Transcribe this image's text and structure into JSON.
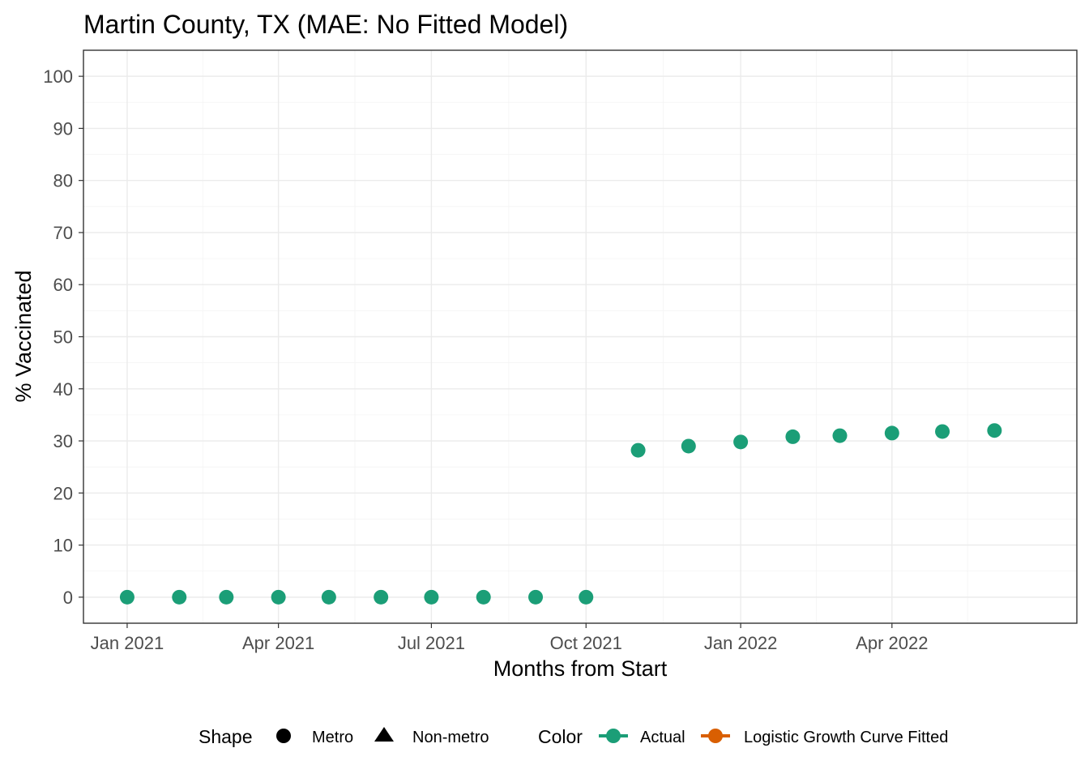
{
  "chart_data": {
    "type": "scatter",
    "title": "Martin County, TX (MAE: No Fitted Model)",
    "xlabel": "Months from Start",
    "ylabel": "% Vaccinated",
    "x_tick_labels": [
      "Jan 2021",
      "Apr 2021",
      "Jul 2021",
      "Oct 2021",
      "Jan 2022",
      "Apr 2022"
    ],
    "x_ticks": [
      "2021-01-01",
      "2021-04-01",
      "2021-07-01",
      "2021-10-01",
      "2022-01-01",
      "2022-04-01"
    ],
    "xlim": [
      "2020-12-06",
      "2022-07-20"
    ],
    "ylim": [
      -5,
      105
    ],
    "y_ticks": [
      0,
      10,
      20,
      30,
      40,
      50,
      60,
      70,
      80,
      90,
      100
    ],
    "grid": true,
    "legend_position": "bottom",
    "series": [
      {
        "name": "Actual",
        "color": "#1b9e77",
        "shape": "Metro",
        "points": [
          {
            "x": "2021-01-01",
            "y": 0
          },
          {
            "x": "2021-02-01",
            "y": 0
          },
          {
            "x": "2021-03-01",
            "y": 0
          },
          {
            "x": "2021-04-01",
            "y": 0
          },
          {
            "x": "2021-05-01",
            "y": 0
          },
          {
            "x": "2021-06-01",
            "y": 0
          },
          {
            "x": "2021-07-01",
            "y": 0
          },
          {
            "x": "2021-08-01",
            "y": 0
          },
          {
            "x": "2021-09-01",
            "y": 0
          },
          {
            "x": "2021-10-01",
            "y": 0
          },
          {
            "x": "2021-11-01",
            "y": 28.2
          },
          {
            "x": "2021-12-01",
            "y": 29.0
          },
          {
            "x": "2022-01-01",
            "y": 29.8
          },
          {
            "x": "2022-02-01",
            "y": 30.8
          },
          {
            "x": "2022-03-01",
            "y": 31.0
          },
          {
            "x": "2022-04-01",
            "y": 31.5
          },
          {
            "x": "2022-05-01",
            "y": 31.8
          },
          {
            "x": "2022-06-01",
            "y": 32.0
          }
        ]
      }
    ],
    "legend": {
      "shape_title": "Shape",
      "shape_items": [
        {
          "label": "Metro",
          "symbol": "circle"
        },
        {
          "label": "Non-metro",
          "symbol": "triangle"
        }
      ],
      "color_title": "Color",
      "color_items": [
        {
          "label": "Actual",
          "color": "#1b9e77"
        },
        {
          "label": "Logistic Growth Curve Fitted",
          "color": "#d95f02"
        }
      ]
    }
  }
}
